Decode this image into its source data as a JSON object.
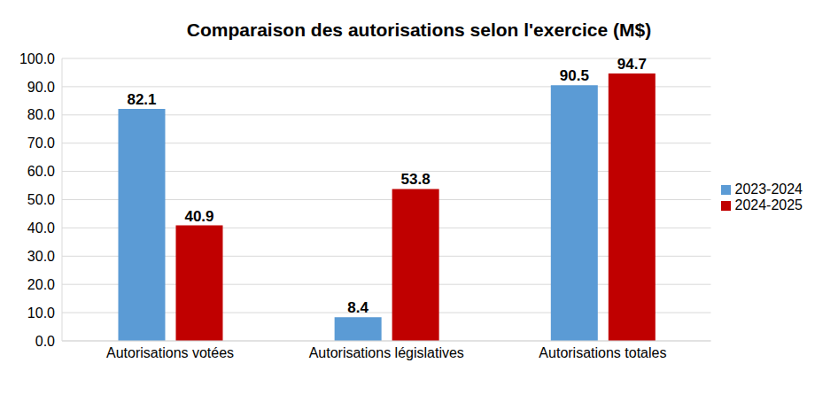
{
  "chart_data": {
    "type": "bar",
    "title": "Comparaison des autorisations selon l'exercice (M$)",
    "categories": [
      "Autorisations votées",
      "Autorisations législatives",
      "Autorisations totales"
    ],
    "series": [
      {
        "name": "2023-2024",
        "color": "#5b9bd5",
        "values": [
          82.1,
          8.4,
          90.5
        ]
      },
      {
        "name": "2024-2025",
        "color": "#c00000",
        "values": [
          40.9,
          53.8,
          94.7
        ]
      }
    ],
    "ylim": [
      0,
      100
    ],
    "yticks": [
      {
        "value": 0,
        "label": "0.0"
      },
      {
        "value": 10,
        "label": "10.0"
      },
      {
        "value": 20,
        "label": "20.0"
      },
      {
        "value": 30,
        "label": "30.0"
      },
      {
        "value": 40,
        "label": "40.0"
      },
      {
        "value": 50,
        "label": "50.0"
      },
      {
        "value": 60,
        "label": "60.0"
      },
      {
        "value": 70,
        "label": "70.0"
      },
      {
        "value": 80,
        "label": "80.0"
      },
      {
        "value": 90,
        "label": "90.0"
      },
      {
        "value": 100,
        "label": "100.0"
      }
    ],
    "grid": true,
    "legend": "right",
    "data_labels": true
  }
}
